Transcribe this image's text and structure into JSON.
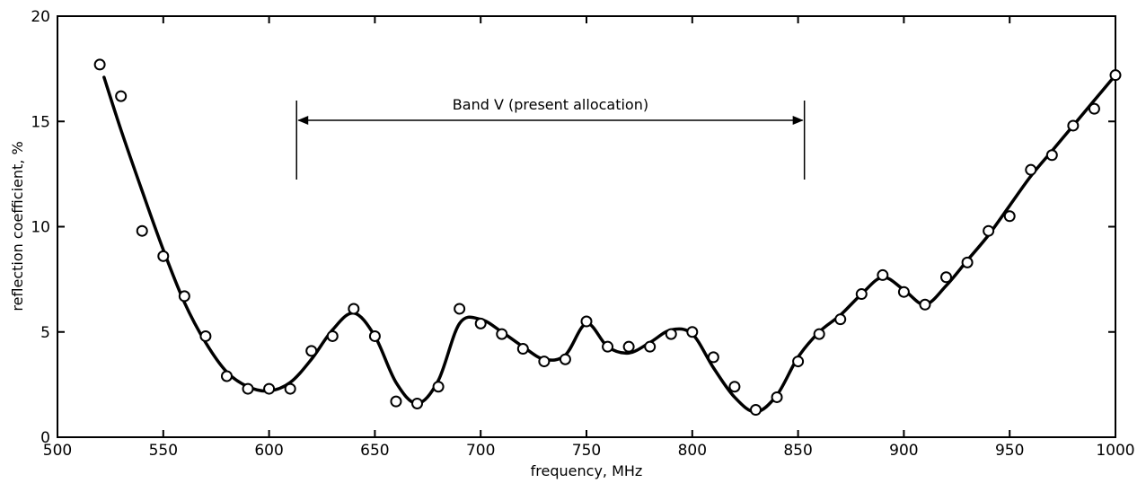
{
  "chart_data": {
    "type": "scatter",
    "xlabel": "frequency,  MHz",
    "ylabel": "reflection coefficient, %",
    "xlim": [
      500,
      1000
    ],
    "ylim": [
      0,
      20
    ],
    "xticks": [
      500,
      550,
      600,
      650,
      700,
      750,
      800,
      850,
      900,
      950,
      1000
    ],
    "yticks": [
      0,
      5,
      10,
      15,
      20
    ],
    "grid": false,
    "points": {
      "x": [
        520,
        530,
        540,
        550,
        560,
        570,
        580,
        590,
        600,
        610,
        620,
        630,
        640,
        650,
        660,
        670,
        680,
        690,
        700,
        710,
        720,
        730,
        740,
        750,
        760,
        770,
        780,
        790,
        800,
        810,
        820,
        830,
        840,
        850,
        860,
        870,
        880,
        890,
        900,
        910,
        920,
        930,
        940,
        950,
        960,
        970,
        980,
        990,
        1000
      ],
      "y": [
        17.7,
        16.2,
        9.8,
        8.6,
        6.7,
        4.8,
        2.9,
        2.3,
        2.3,
        2.3,
        4.1,
        4.8,
        6.1,
        4.8,
        1.7,
        1.6,
        2.4,
        6.1,
        5.4,
        4.9,
        4.2,
        3.6,
        3.7,
        5.5,
        4.3,
        4.3,
        4.3,
        4.9,
        5.0,
        3.8,
        2.4,
        1.3,
        1.9,
        3.6,
        4.9,
        5.6,
        6.8,
        7.7,
        6.9,
        6.3,
        7.6,
        8.3,
        9.8,
        10.5,
        12.7,
        13.4,
        14.8,
        15.6,
        17.2
      ]
    },
    "fitted_curve": {
      "x": [
        522,
        530,
        540,
        550,
        560,
        570,
        580,
        590,
        600,
        610,
        620,
        630,
        640,
        650,
        660,
        670,
        680,
        690,
        700,
        710,
        720,
        730,
        740,
        750,
        760,
        770,
        780,
        790,
        800,
        810,
        820,
        830,
        840,
        850,
        860,
        870,
        880,
        890,
        900,
        910,
        920,
        930,
        940,
        950,
        960,
        970,
        980,
        990,
        1000
      ],
      "y": [
        17.1,
        14.6,
        11.7,
        8.9,
        6.4,
        4.5,
        3.1,
        2.4,
        2.2,
        2.6,
        3.7,
        5.1,
        5.9,
        4.8,
        2.6,
        1.6,
        2.7,
        5.4,
        5.6,
        5.0,
        4.3,
        3.7,
        3.9,
        5.4,
        4.3,
        4.0,
        4.5,
        5.1,
        4.9,
        3.3,
        1.9,
        1.2,
        2.0,
        3.8,
        5.0,
        5.8,
        6.8,
        7.6,
        7.0,
        6.3,
        7.2,
        8.4,
        9.6,
        11.0,
        12.4,
        13.6,
        14.8,
        16.0,
        17.2
      ]
    },
    "annotation": {
      "label": "Band Ⅴ (present allocation)",
      "x_start": 613,
      "x_end": 853
    }
  }
}
